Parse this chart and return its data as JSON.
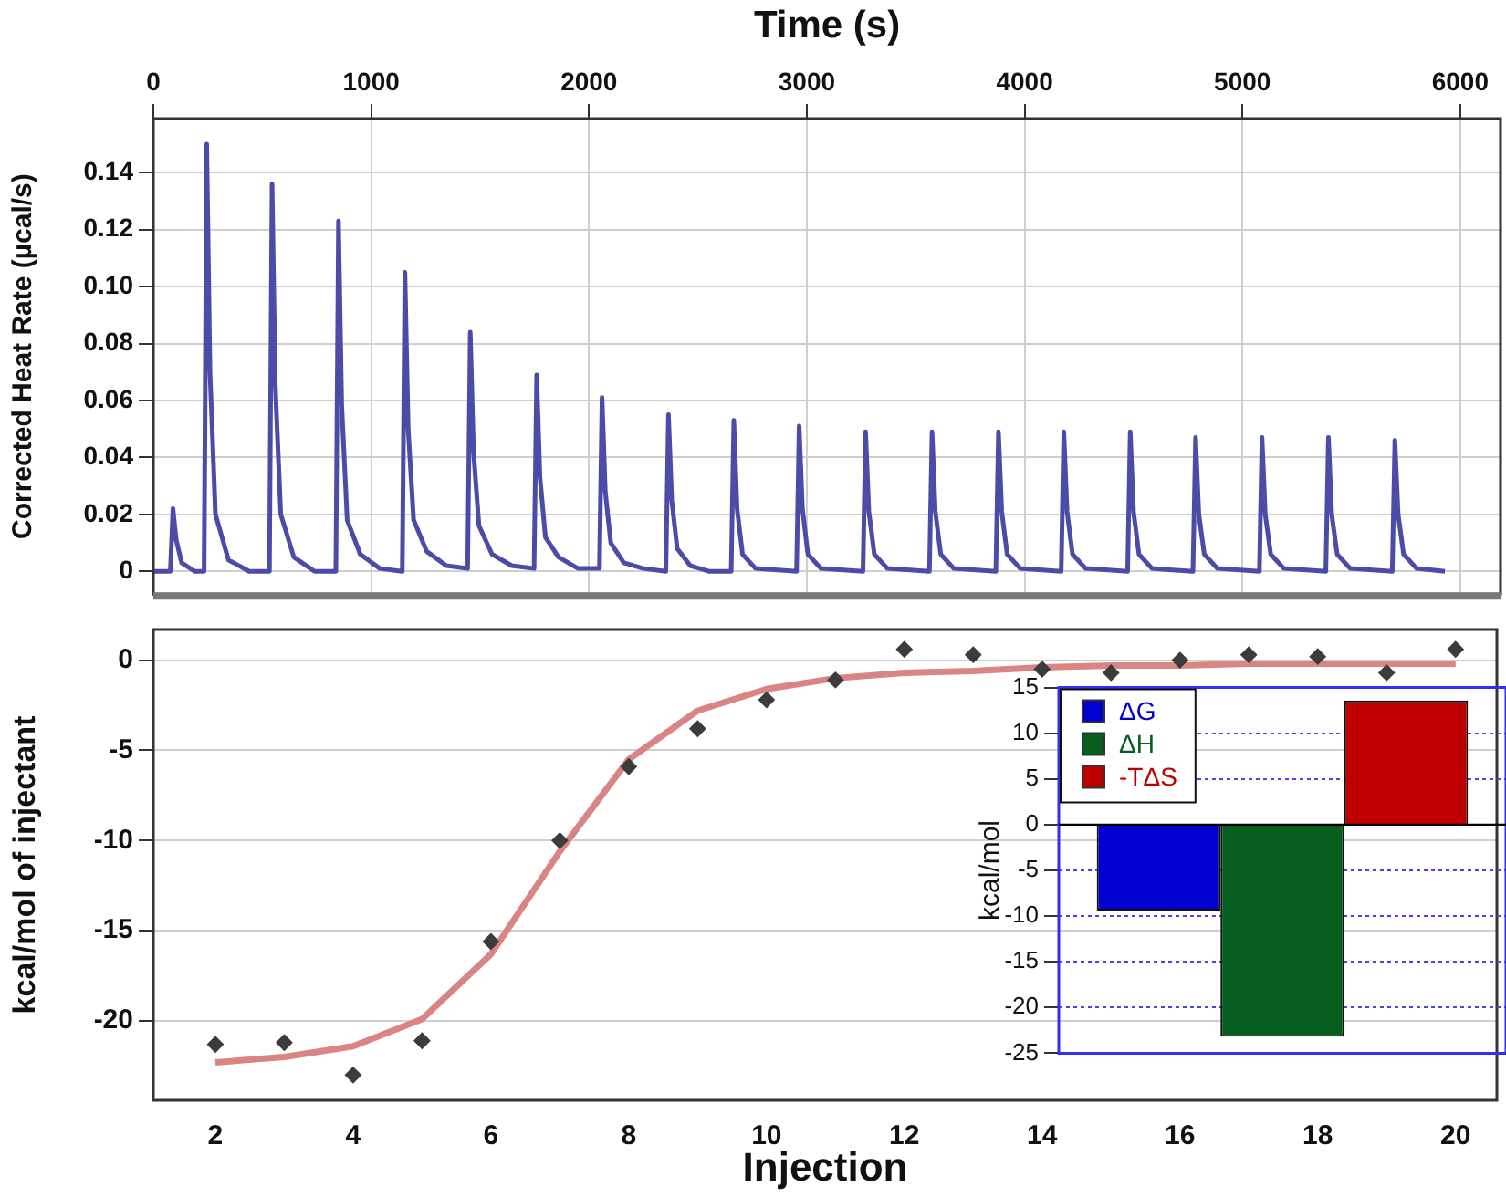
{
  "chart_data": [
    {
      "type": "line",
      "x2label": "Time (s)",
      "ylabel": "Corrected Heat Rate (µcal/s)",
      "x2lim": [
        0,
        6185
      ],
      "x2ticks": [
        0,
        1000,
        2000,
        3000,
        4000,
        5000,
        6000
      ],
      "ylim": [
        -0.008,
        0.159
      ],
      "yticks": [
        0,
        0.02,
        0.04,
        0.06,
        0.08,
        {
          "value": 0.1,
          "label": "0.10"
        },
        0.12,
        0.14
      ],
      "grid": true,
      "legend": false,
      "marker": "none",
      "line_style": "solid",
      "x": [
        0,
        78,
        90,
        105,
        130,
        190,
        233,
        245,
        260,
        285,
        345,
        440,
        533,
        545,
        560,
        585,
        645,
        740,
        838,
        850,
        865,
        890,
        950,
        1040,
        1143,
        1155,
        1170,
        1195,
        1255,
        1345,
        1443,
        1455,
        1470,
        1495,
        1555,
        1645,
        1748,
        1760,
        1775,
        1800,
        1860,
        1950,
        2048,
        2060,
        2075,
        2100,
        2160,
        2250,
        2353,
        2365,
        2380,
        2405,
        2465,
        2550,
        2653,
        2665,
        2680,
        2705,
        2765,
        2953,
        2965,
        2980,
        3005,
        3065,
        3258,
        3270,
        3285,
        3310,
        3370,
        3563,
        3575,
        3590,
        3615,
        3675,
        3868,
        3880,
        3895,
        3920,
        3980,
        4168,
        4180,
        4195,
        4220,
        4280,
        4473,
        4485,
        4500,
        4525,
        4585,
        4773,
        4785,
        4800,
        4825,
        4885,
        5078,
        5090,
        5105,
        5130,
        5190,
        5383,
        5395,
        5410,
        5435,
        5495,
        5688,
        5700,
        5715,
        5740,
        5800,
        5930
      ],
      "series": [
        {
          "axis": "x2",
          "color": "#4b4ba8",
          "values": [
            0,
            0,
            0.022,
            0.011,
            0.003,
            0,
            0,
            0.15,
            0.07,
            0.02,
            0.004,
            0,
            0,
            0.136,
            0.065,
            0.02,
            0.005,
            0,
            0,
            0.123,
            0.058,
            0.018,
            0.006,
            0.001,
            0,
            0.105,
            0.05,
            0.018,
            0.007,
            0.002,
            0.001,
            0.084,
            0.042,
            0.016,
            0.006,
            0.002,
            0.001,
            0.069,
            0.033,
            0.012,
            0.005,
            0.001,
            0.001,
            0.061,
            0.028,
            0.01,
            0.003,
            0.001,
            0,
            0.055,
            0.025,
            0.008,
            0.002,
            0,
            0,
            0.053,
            0.022,
            0.006,
            0.001,
            0,
            0.051,
            0.022,
            0.006,
            0.001,
            0,
            0.049,
            0.021,
            0.006,
            0.001,
            0,
            0.049,
            0.021,
            0.006,
            0.001,
            0,
            0.049,
            0.021,
            0.006,
            0.001,
            0,
            0.049,
            0.021,
            0.006,
            0.001,
            0,
            0.049,
            0.021,
            0.006,
            0.001,
            0,
            0.047,
            0.02,
            0.006,
            0.001,
            0,
            0.047,
            0.02,
            0.006,
            0.001,
            0,
            0.047,
            0.02,
            0.006,
            0.001,
            0,
            0.046,
            0.02,
            0.006,
            0.001,
            0
          ]
        }
      ]
    },
    {
      "type": "scatter",
      "xlabel": "Injection",
      "ylabel": "kcal/mol of injectant",
      "xlim": [
        1.1,
        20.6
      ],
      "xticks": [
        2,
        4,
        6,
        8,
        10,
        12,
        14,
        16,
        18,
        20
      ],
      "ylim": [
        -24.4,
        1.7
      ],
      "yticks": [
        -20,
        -15,
        -10,
        -5,
        0
      ],
      "grid": "y",
      "legend": false,
      "marker": "diamond",
      "x": [
        2,
        3,
        4,
        5,
        6,
        7,
        8,
        9,
        10,
        11,
        12,
        13,
        14,
        15,
        16,
        17,
        18,
        19,
        20
      ],
      "series": [
        {
          "type": "scatter",
          "color": "#3c3c3c",
          "values": [
            -21.3,
            -21.2,
            -23.0,
            -21.1,
            -15.6,
            -10.0,
            -5.9,
            -3.8,
            -2.2,
            -1.1,
            0.6,
            0.3,
            -0.5,
            -0.7,
            0,
            0.3,
            0.2,
            -0.7,
            0.6
          ]
        },
        {
          "type": "line",
          "marker": "none",
          "color": "#d98585",
          "values": [
            -22.3,
            -22.0,
            -21.4,
            -19.9,
            -16.3,
            -10.6,
            -5.5,
            -2.8,
            -1.6,
            -1.0,
            -0.7,
            -0.6,
            -0.4,
            -0.3,
            -0.3,
            -0.2,
            -0.2,
            -0.2,
            -0.2
          ]
        }
      ]
    },
    {
      "type": "bar",
      "ylabel": "kcal/mol",
      "categories": [
        null
      ],
      "ylim": [
        -25,
        15
      ],
      "yticks": [
        -25,
        -20,
        -15,
        -10,
        -5,
        0,
        5,
        10,
        15
      ],
      "grid": "y",
      "legend": "top left",
      "tick_labels": "y",
      "series": [
        {
          "name": "ΔG",
          "color": "#0000d0",
          "values": [
            -9.4
          ]
        },
        {
          "name": "ΔH",
          "color": "#065e1e",
          "values": [
            -23.2
          ]
        },
        {
          "name": "-TΔS",
          "color": "#c00000",
          "values": [
            13.6
          ]
        }
      ]
    }
  ]
}
